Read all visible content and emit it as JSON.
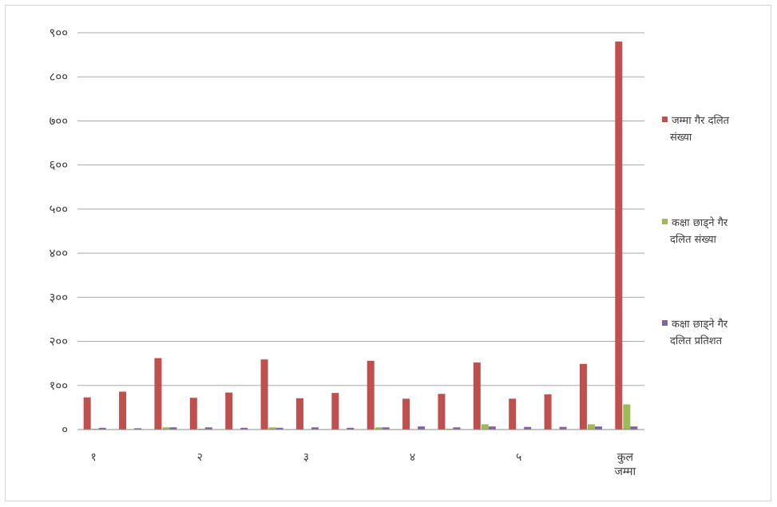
{
  "chart_data": {
    "type": "bar",
    "ylim": [
      0,
      900
    ],
    "y_ticks": [
      {
        "value": 0,
        "label": "०"
      },
      {
        "value": 100,
        "label": "१००"
      },
      {
        "value": 200,
        "label": "२००"
      },
      {
        "value": 300,
        "label": "३००"
      },
      {
        "value": 400,
        "label": "४००"
      },
      {
        "value": 500,
        "label": "५००"
      },
      {
        "value": 600,
        "label": "६००"
      },
      {
        "value": 700,
        "label": "७००"
      },
      {
        "value": 800,
        "label": "८००"
      },
      {
        "value": 900,
        "label": "९००"
      }
    ],
    "grid": true,
    "legend_position": "right",
    "category_labels": [
      {
        "label": "१",
        "category_index": 0
      },
      {
        "label": "२",
        "category_index": 3
      },
      {
        "label": "३",
        "category_index": 6
      },
      {
        "label": "४",
        "category_index": 9
      },
      {
        "label": "५",
        "category_index": 12
      },
      {
        "label": "कुल जम्मा",
        "category_index": 15
      }
    ],
    "category_count": 16,
    "series": [
      {
        "name": "जम्मा गैर दलित संख्या",
        "color": "#c0504d",
        "values": [
          73,
          86,
          162,
          72,
          84,
          159,
          71,
          83,
          156,
          70,
          81,
          152,
          70,
          80,
          149,
          880
        ]
      },
      {
        "name": "कक्षा छाड्ने गैर दलित संख्या",
        "color": "#9bbb59",
        "values": [
          2,
          1,
          5,
          2,
          1,
          5,
          1,
          1,
          5,
          1,
          2,
          12,
          1,
          1,
          12,
          57
        ]
      },
      {
        "name": "कक्षा छाड्ने गैर दलित प्रतिशत",
        "color": "#8064a2",
        "values": [
          4,
          3,
          5,
          5,
          4,
          4,
          5,
          4,
          5,
          7,
          5,
          7,
          6,
          6,
          7,
          7
        ]
      }
    ]
  }
}
